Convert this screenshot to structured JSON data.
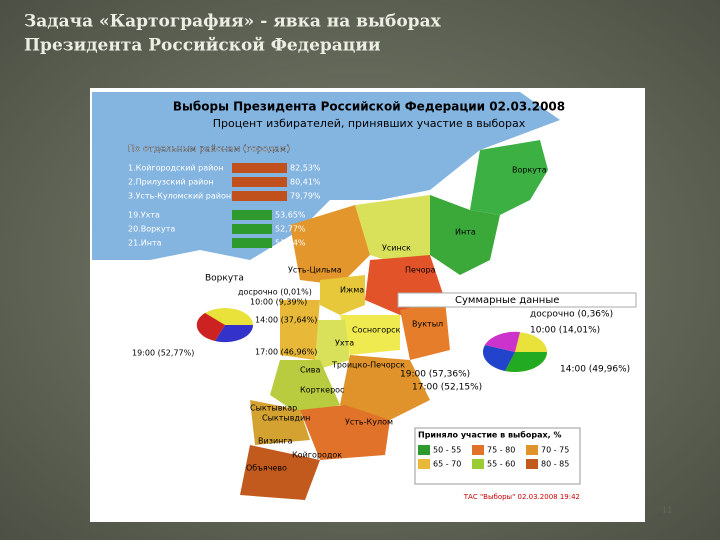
{
  "slide": {
    "title_line1": "Задача «Картография» - явка на выборах",
    "title_line2": "Президента Российской Федерации",
    "page_number": "11"
  },
  "map": {
    "title": "Выборы Президента Российской Федерации 02.03.2008",
    "subtitle": "Процент избирателей, принявших участие в выборах",
    "districts_box": {
      "heading": "По отдельным районам (городам)",
      "rows": [
        {
          "name": "1.Койгородский район",
          "value": "82,53%"
        },
        {
          "name": "2.Прилузский район",
          "value": "80,41%"
        },
        {
          "name": "3.Усть-Куломский район",
          "value": "79,79%"
        },
        {
          "name": "19.Ухта",
          "value": "53,65%"
        },
        {
          "name": "20.Воркута",
          "value": "52,77%"
        },
        {
          "name": "21.Инта",
          "value": "51,94%"
        }
      ]
    },
    "vorkuta_pie": {
      "heading": "Воркута",
      "labels": [
        "досрочно (0,01%)",
        "10:00 (9,39%)",
        "14:00 (37,64%)",
        "17:00 (46,96%)",
        "19:00 (52,77%)"
      ]
    },
    "summary_pie": {
      "heading": "Суммарные данные",
      "labels": [
        "досрочно (0,36%)",
        "10:00 (14,01%)",
        "14:00 (49,96%)",
        "19:00 (57,36%)",
        "17:00 (52,15%)"
      ]
    },
    "legend": {
      "title": "Приняло участие в выборах, %",
      "items": [
        "50 - 55",
        "65 - 70",
        "75 - 80",
        "55 - 60",
        "70 - 75",
        "80 - 85"
      ]
    },
    "places": [
      "Воркута",
      "Инта",
      "Усинск",
      "Усть-Цильма",
      "Печора",
      "Ижма",
      "Сосногорск",
      "Вуктыл",
      "Ухта",
      "Троицко-Печорск",
      "Сыктывкар",
      "Сыктывдин",
      "Корткерос",
      "Усть-Кулом",
      "Визинга",
      "Койгородок",
      "Объячево",
      "Сива"
    ],
    "footer": "ТАС \"Выборы\" 02.03.2008 19:42"
  }
}
